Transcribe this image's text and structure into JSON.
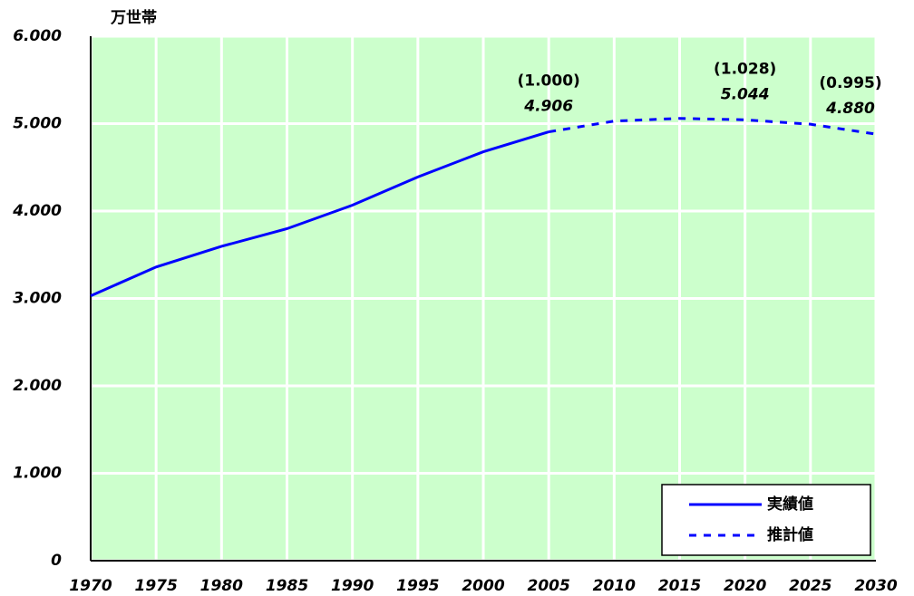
{
  "chart_data": {
    "type": "line",
    "y_axis_label": "万世帯",
    "x": [
      1970,
      1975,
      1980,
      1985,
      1990,
      1995,
      2000,
      2005,
      2010,
      2015,
      2020,
      2025,
      2030
    ],
    "series": [
      {
        "name": "実績値",
        "color": "#0000ff",
        "dash": "solid",
        "values": [
          3030,
          3360,
          3596,
          3798,
          4067,
          4390,
          4678,
          4906,
          null,
          null,
          null,
          null,
          null
        ]
      },
      {
        "name": "推計値",
        "color": "#0000ff",
        "dash": "dotted",
        "values": [
          null,
          null,
          null,
          null,
          null,
          null,
          null,
          4906,
          5029,
          5060,
          5044,
          4993,
          4880
        ],
        "value_labels": [
          null,
          null,
          null,
          null,
          null,
          null,
          null,
          "4.906",
          null,
          null,
          "5.044",
          null,
          "4.880"
        ],
        "ratio_labels": [
          null,
          null,
          null,
          null,
          null,
          null,
          null,
          "(1.000)",
          null,
          null,
          "(1.028)",
          null,
          "(0.995)"
        ]
      }
    ],
    "xlim": [
      1970,
      2030
    ],
    "xticks": [
      1970,
      1975,
      1980,
      1985,
      1990,
      1995,
      2000,
      2005,
      2010,
      2015,
      2020,
      2025,
      2030
    ],
    "ylim": [
      0,
      6000
    ],
    "yticks": [
      0,
      {
        "value": 1000,
        "label": "1.000"
      },
      {
        "value": 2000,
        "label": "2.000"
      },
      {
        "value": 3000,
        "label": "3.000"
      },
      {
        "value": 4000,
        "label": "4.000"
      },
      {
        "value": 5000,
        "label": "5.000"
      },
      {
        "value": 6000,
        "label": "6.000"
      }
    ],
    "grid": true,
    "legend": "lower right",
    "background": "#ccffcc"
  }
}
